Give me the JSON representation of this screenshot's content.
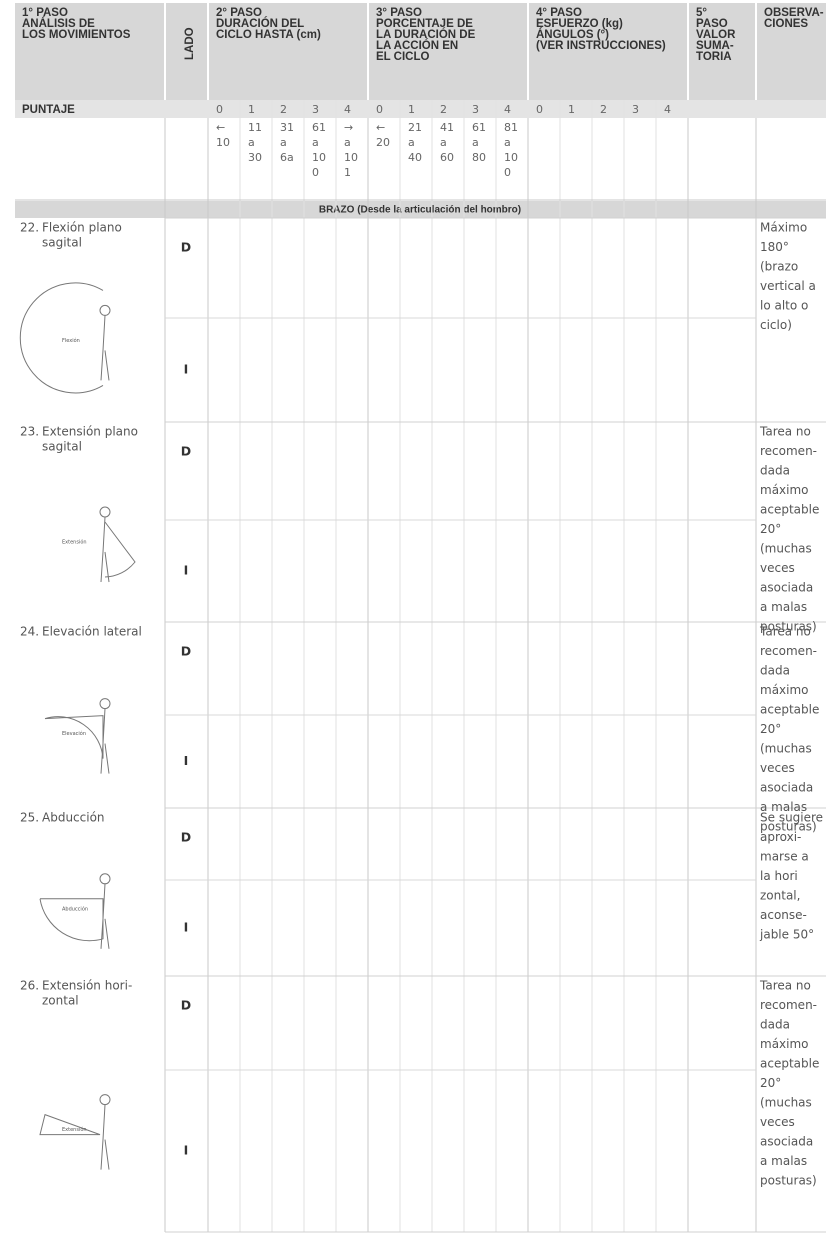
{
  "header": {
    "step1": [
      "1° PASO",
      "ANÁLISIS DE",
      "LOS MOVIMIENTOS"
    ],
    "lado": "LADO",
    "step2": [
      "2° PASO",
      "DURACIÓN DEL",
      "CICLO HASTA (cm)"
    ],
    "step3": [
      "3° PASO",
      "PORCENTAJE DE",
      "LA DURACIÓN DE",
      "LA ACCIÓN EN",
      "EL CICLO"
    ],
    "step4": [
      "4° PASO",
      "ESFUERZO (kg)",
      "ÁNGULOS (°)",
      "(VER INSTRUCCIONES)"
    ],
    "step5": [
      "5°",
      "PASO",
      "VALOR",
      "SUMA-",
      "TORIA"
    ],
    "observations": [
      "OBSERVA-",
      "CIONES"
    ]
  },
  "scores": {
    "label": "PUNTAJE",
    "step2": [
      0,
      1,
      2,
      3,
      4
    ],
    "step2_ranges": [
      [
        "←",
        "10"
      ],
      [
        "11",
        "a",
        "30"
      ],
      [
        "31",
        "a",
        "6a"
      ],
      [
        "61",
        "a",
        "10",
        "0"
      ],
      [
        "→",
        "a",
        "10",
        "1"
      ]
    ],
    "step3": [
      0,
      1,
      2,
      3,
      4
    ],
    "step3_ranges": [
      [
        "←",
        "20"
      ],
      [
        "21",
        "a",
        "40"
      ],
      [
        "41",
        "a",
        "60"
      ],
      [
        "61",
        "a",
        "80"
      ],
      [
        "81",
        "a",
        "10",
        "0"
      ]
    ],
    "step4": [
      0,
      1,
      2,
      3,
      4
    ]
  },
  "section": "BRAZO (Desde la articulación del hombro)",
  "items": [
    {
      "number": "22.",
      "label": [
        "Flexión plano",
        "sagital"
      ],
      "figure_label": "Flexión",
      "sides": [
        "D",
        "I"
      ],
      "observations": [
        "Máximo",
        "180°",
        "(brazo",
        "vertical a",
        "lo alto o",
        "ciclo)"
      ]
    },
    {
      "number": "23.",
      "label": [
        "Extensión plano",
        "sagital"
      ],
      "figure_label": "Extensión",
      "sides": [
        "D",
        "I"
      ],
      "observations": [
        "Tarea no",
        "recomen-",
        "dada",
        "máximo",
        "aceptable",
        "20°",
        "(muchas",
        "veces",
        "asociada",
        "a malas",
        "posturas)"
      ]
    },
    {
      "number": "24.",
      "label": [
        "Elevación lateral"
      ],
      "figure_label": "Elevación",
      "sides": [
        "D",
        "I"
      ],
      "observations": [
        "Tarea no",
        "recomen-",
        "dada",
        "máximo",
        "aceptable",
        "20°",
        "(muchas",
        "veces",
        "asociada",
        "a malas",
        "posturas)"
      ]
    },
    {
      "number": "25.",
      "label": [
        "Abducción"
      ],
      "figure_label": "Abducción",
      "sides": [
        "D",
        "I"
      ],
      "observations": [
        "Se sugiere",
        "aproxi-",
        "marse a",
        "la hori",
        "zontal,",
        "aconse-",
        "jable 50°"
      ]
    },
    {
      "number": "26.",
      "label": [
        "Extensión hori-",
        "zontal"
      ],
      "figure_label": "Extensión",
      "sides": [
        "D",
        "I"
      ],
      "observations": [
        "Tarea no",
        "recomen-",
        "dada",
        "máximo",
        "aceptable",
        "20°",
        "(muchas",
        "veces",
        "asociada",
        "a malas",
        "posturas)"
      ]
    }
  ]
}
